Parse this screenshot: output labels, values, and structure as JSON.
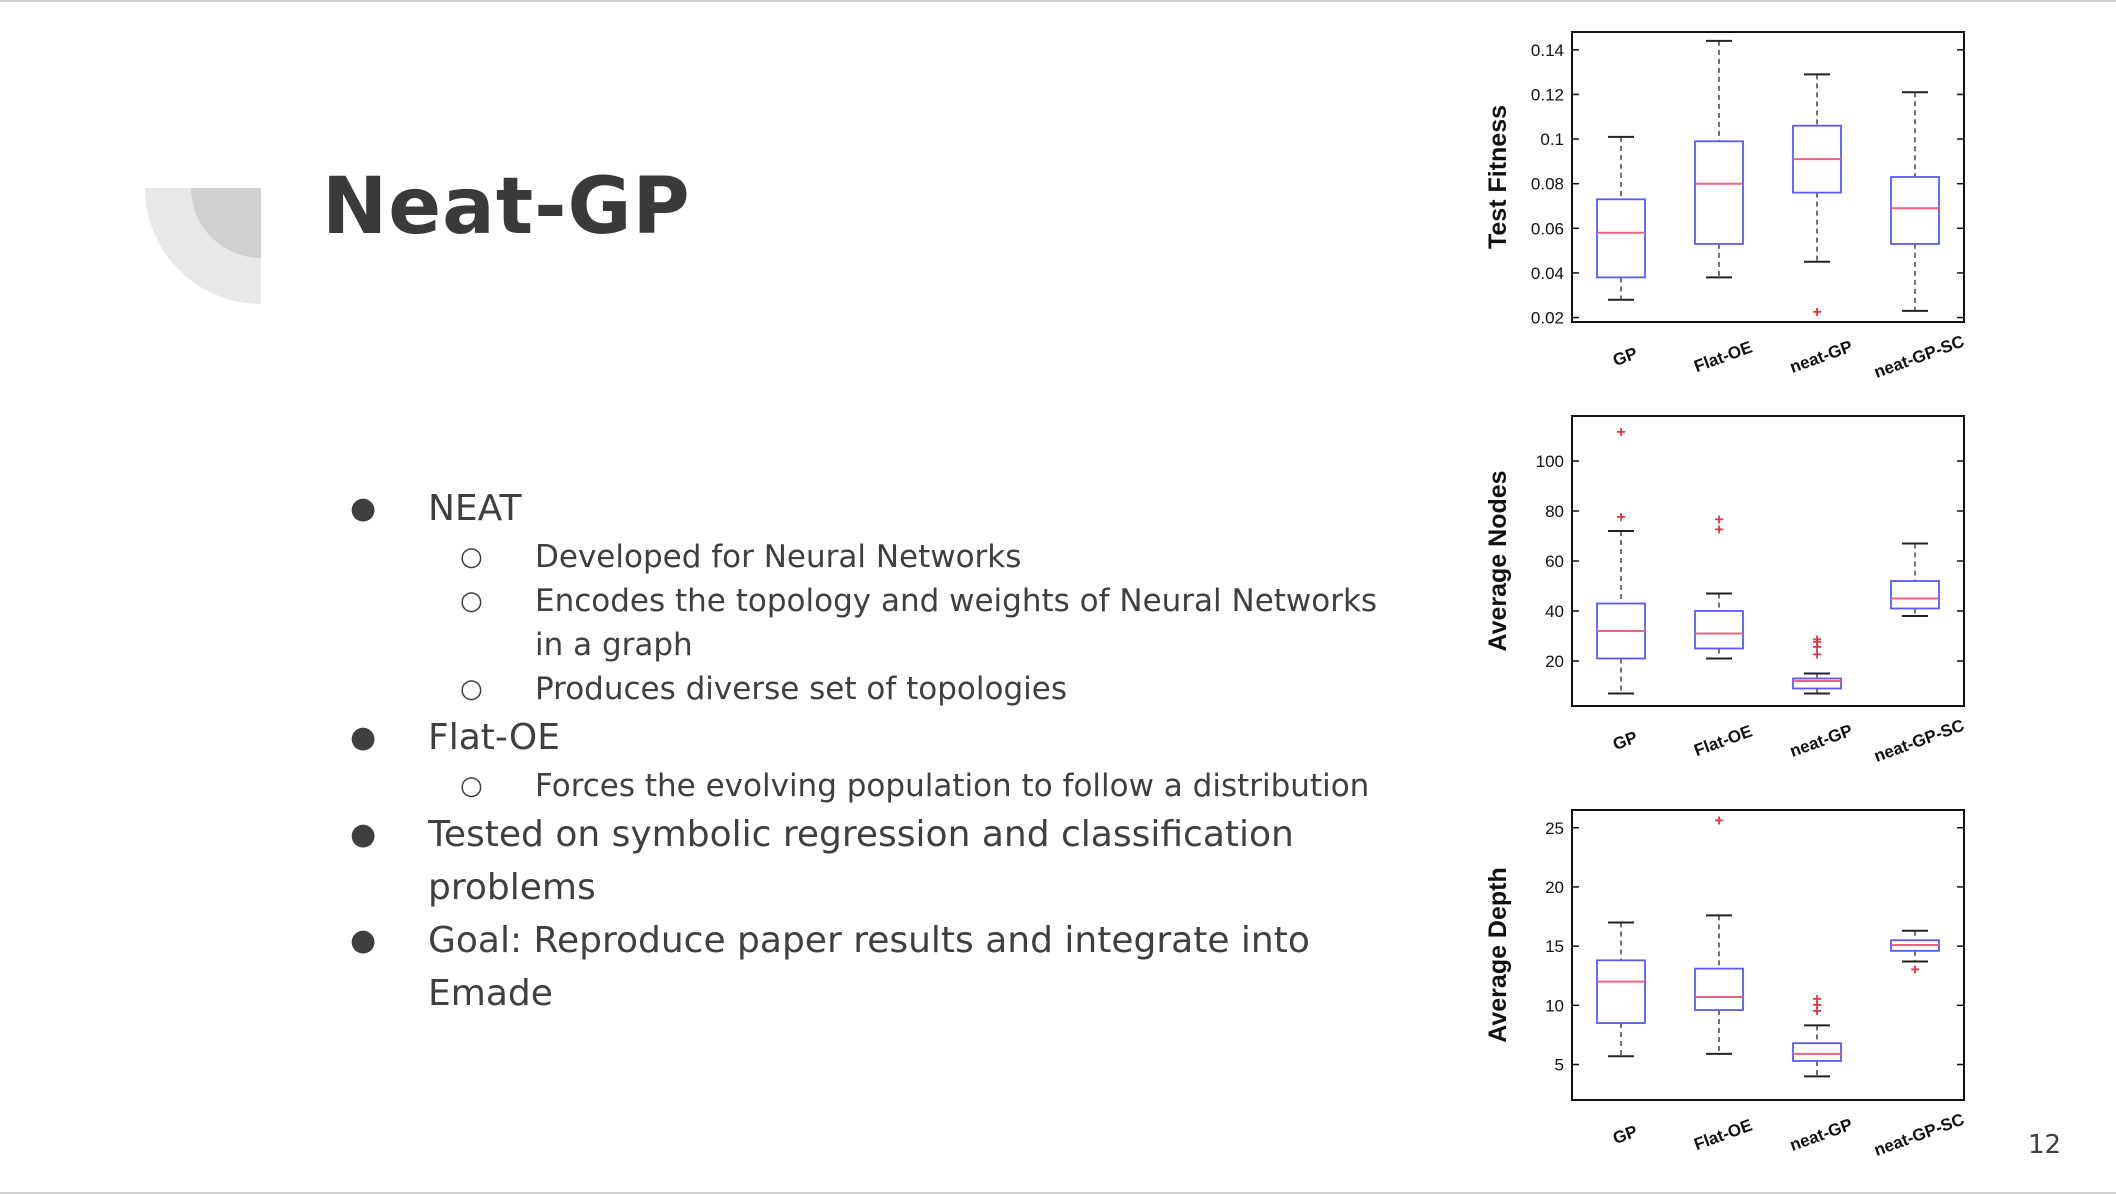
{
  "slide": {
    "title": "Neat-GP",
    "page_number": "12"
  },
  "bullets": [
    {
      "text": "NEAT",
      "level": 1
    },
    {
      "text": "Developed for Neural Networks",
      "level": 2
    },
    {
      "text": "Encodes the topology and weights of Neural Networks in a graph",
      "level": 2
    },
    {
      "text": "Produces diverse set of topologies",
      "level": 2
    },
    {
      "text": "Flat-OE",
      "level": 1
    },
    {
      "text": "Forces the evolving population to follow a distribution",
      "level": 2
    },
    {
      "text": "Tested on symbolic regression and classification problems",
      "level": 1
    },
    {
      "text": "Goal: Reproduce paper results and integrate into Emade",
      "level": 1
    }
  ],
  "chart_data": [
    {
      "type": "box",
      "ylabel": "Test Fitness",
      "categories": [
        "GP",
        "Flat-OE",
        "neat-GP",
        "neat-GP-SC"
      ],
      "yticks": [
        "0.02",
        "0.04",
        "0.06",
        "0.08",
        "0.1",
        "0.12",
        "0.14"
      ],
      "ylim": [
        0.018,
        0.148
      ],
      "boxes": [
        {
          "whisker_low": 0.028,
          "q1": 0.038,
          "median": 0.058,
          "q3": 0.073,
          "whisker_high": 0.101,
          "outliers": []
        },
        {
          "whisker_low": 0.038,
          "q1": 0.053,
          "median": 0.08,
          "q3": 0.099,
          "whisker_high": 0.144,
          "outliers": []
        },
        {
          "whisker_low": 0.045,
          "q1": 0.076,
          "median": 0.091,
          "q3": 0.106,
          "whisker_high": 0.129,
          "outliers": [
            0.023
          ]
        },
        {
          "whisker_low": 0.023,
          "q1": 0.053,
          "median": 0.069,
          "q3": 0.083,
          "whisker_high": 0.121,
          "outliers": []
        }
      ],
      "colors": {
        "box": "#5a5af5",
        "median": "#f06080",
        "outlier": "#e83040",
        "whisker": "#444444"
      }
    },
    {
      "type": "box",
      "ylabel": "Average Nodes",
      "categories": [
        "GP",
        "Flat-OE",
        "neat-GP",
        "neat-GP-SC"
      ],
      "yticks": [
        "20",
        "40",
        "60",
        "80",
        "100"
      ],
      "ylim": [
        2,
        118
      ],
      "boxes": [
        {
          "whisker_low": 7,
          "q1": 21,
          "median": 32,
          "q3": 43,
          "whisker_high": 72,
          "outliers": [
            78,
            112
          ]
        },
        {
          "whisker_low": 21,
          "q1": 25,
          "median": 31,
          "q3": 40,
          "whisker_high": 47,
          "outliers": [
            73,
            77
          ]
        },
        {
          "whisker_low": 7,
          "q1": 9,
          "median": 12,
          "q3": 13,
          "whisker_high": 15,
          "outliers": [
            23,
            26,
            28,
            29
          ]
        },
        {
          "whisker_low": 38,
          "q1": 41,
          "median": 45,
          "q3": 52,
          "whisker_high": 67,
          "outliers": []
        }
      ],
      "colors": {
        "box": "#5a5af5",
        "median": "#f06080",
        "outlier": "#e83040",
        "whisker": "#444444"
      }
    },
    {
      "type": "box",
      "ylabel": "Average Depth",
      "categories": [
        "GP",
        "Flat-OE",
        "neat-GP",
        "neat-GP-SC"
      ],
      "yticks": [
        "5",
        "10",
        "15",
        "20",
        "25"
      ],
      "ylim": [
        2,
        26.5
      ],
      "boxes": [
        {
          "whisker_low": 5.7,
          "q1": 8.5,
          "median": 12.0,
          "q3": 13.8,
          "whisker_high": 17.0,
          "outliers": []
        },
        {
          "whisker_low": 5.9,
          "q1": 9.6,
          "median": 10.7,
          "q3": 13.1,
          "whisker_high": 17.6,
          "outliers": [
            25.7
          ]
        },
        {
          "whisker_low": 4.0,
          "q1": 5.3,
          "median": 5.9,
          "q3": 6.8,
          "whisker_high": 8.3,
          "outliers": [
            9.6,
            10.1,
            10.6
          ]
        },
        {
          "whisker_low": 13.7,
          "q1": 14.6,
          "median": 15.1,
          "q3": 15.5,
          "whisker_high": 16.3,
          "outliers": [
            13.1
          ]
        }
      ],
      "colors": {
        "box": "#5a5af5",
        "median": "#f06080",
        "outlier": "#e83040",
        "whisker": "#444444"
      }
    }
  ]
}
